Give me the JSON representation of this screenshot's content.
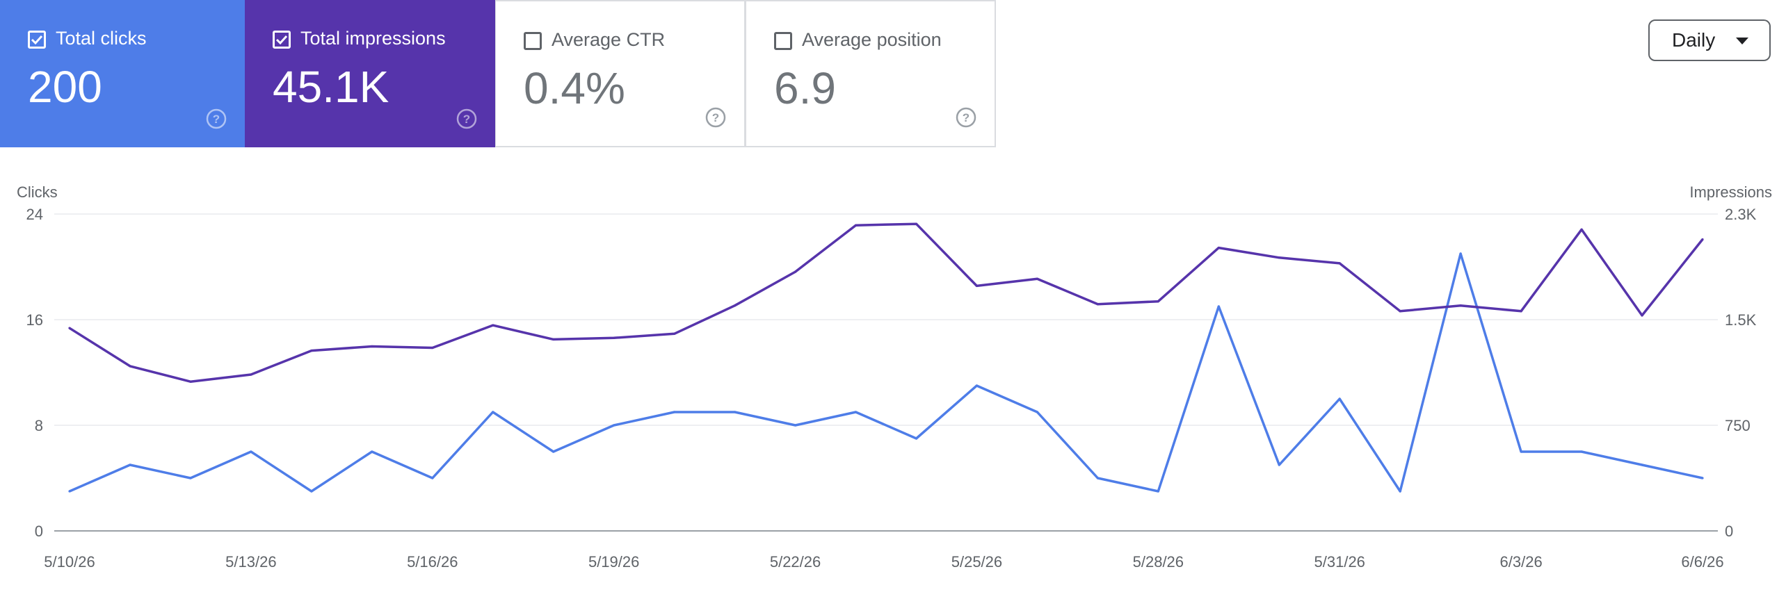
{
  "cards": {
    "clicks": {
      "label": "Total clicks",
      "value": "200",
      "checked": true,
      "color": "#4e7de8"
    },
    "impressions": {
      "label": "Total impressions",
      "value": "45.1K",
      "checked": true,
      "color": "#5634ab"
    },
    "ctr": {
      "label": "Average CTR",
      "value": "0.4%",
      "checked": false
    },
    "position": {
      "label": "Average position",
      "value": "6.9",
      "checked": false
    }
  },
  "period_select": {
    "value": "Daily"
  },
  "chart_data": {
    "type": "line",
    "left_axis_label": "Clicks",
    "right_axis_label": "Impressions",
    "left_ticks": [
      "0",
      "8",
      "16",
      "24"
    ],
    "right_ticks": [
      "0",
      "750",
      "1.5K",
      "2.3K"
    ],
    "left_ylim": [
      0,
      24
    ],
    "right_ylim": [
      0,
      2250
    ],
    "grid": true,
    "x_tick_labels": [
      "5/10/26",
      "5/13/26",
      "5/16/26",
      "5/19/26",
      "5/22/26",
      "5/25/26",
      "5/28/26",
      "5/31/26",
      "6/3/26",
      "6/6/26"
    ],
    "x": [
      "5/10/26",
      "5/11/26",
      "5/12/26",
      "5/13/26",
      "5/14/26",
      "5/15/26",
      "5/16/26",
      "5/17/26",
      "5/18/26",
      "5/19/26",
      "5/20/26",
      "5/21/26",
      "5/22/26",
      "5/23/26",
      "5/24/26",
      "5/25/26",
      "5/26/26",
      "5/27/26",
      "5/28/26",
      "5/29/26",
      "5/30/26",
      "5/31/26",
      "6/1/26",
      "6/2/26",
      "6/3/26",
      "6/4/26",
      "6/5/26",
      "6/6/26"
    ],
    "series": [
      {
        "name": "Total clicks",
        "axis": "left",
        "color": "#4e7de8",
        "values": [
          3,
          5,
          4,
          6,
          3,
          6,
          4,
          9,
          6,
          8,
          9,
          9,
          8,
          9,
          7,
          11,
          9,
          4,
          3,
          17,
          5,
          10,
          3,
          21,
          6,
          6,
          5,
          4
        ]
      },
      {
        "name": "Total impressions",
        "axis": "right",
        "color": "#5634ab",
        "values": [
          1440,
          1170,
          1060,
          1110,
          1280,
          1310,
          1300,
          1460,
          1360,
          1370,
          1400,
          1600,
          1840,
          2170,
          2180,
          1740,
          1790,
          1610,
          1630,
          2010,
          1940,
          1900,
          1560,
          1600,
          1560,
          2140,
          1530,
          2070
        ]
      }
    ]
  }
}
